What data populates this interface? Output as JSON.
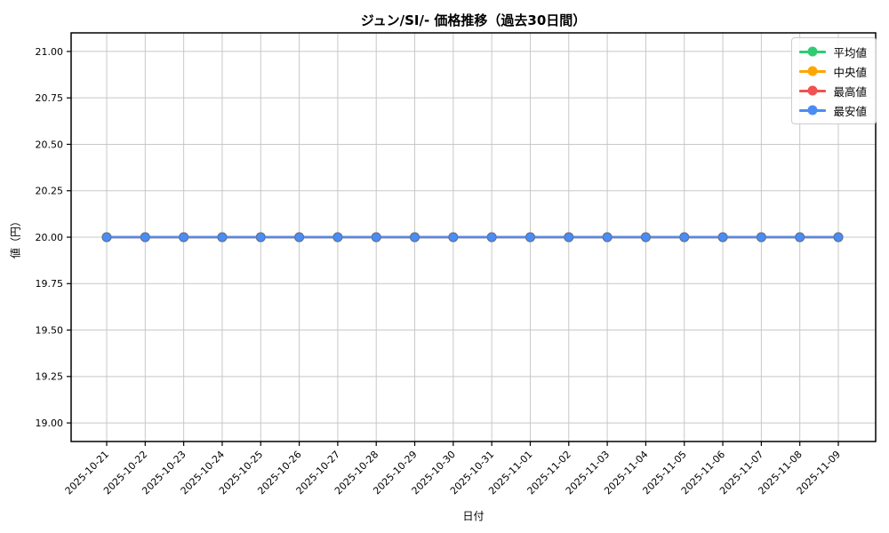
{
  "chart_data": {
    "type": "line",
    "title": "ジュン/SI/- 価格推移（過去30日間）",
    "xlabel": "日付",
    "ylabel": "値（円）",
    "categories": [
      "2025-10-21",
      "2025-10-22",
      "2025-10-23",
      "2025-10-24",
      "2025-10-25",
      "2025-10-26",
      "2025-10-27",
      "2025-10-28",
      "2025-10-29",
      "2025-10-30",
      "2025-10-31",
      "2025-11-01",
      "2025-11-02",
      "2025-11-03",
      "2025-11-04",
      "2025-11-05",
      "2025-11-06",
      "2025-11-07",
      "2025-11-08",
      "2025-11-09"
    ],
    "series": [
      {
        "name": "平均値",
        "color": "#2ecc71",
        "values": [
          20.0,
          20.0,
          20.0,
          20.0,
          20.0,
          20.0,
          20.0,
          20.0,
          20.0,
          20.0,
          20.0,
          20.0,
          20.0,
          20.0,
          20.0,
          20.0,
          20.0,
          20.0,
          20.0,
          20.0
        ]
      },
      {
        "name": "中央値",
        "color": "#ffa502",
        "values": [
          20.0,
          20.0,
          20.0,
          20.0,
          20.0,
          20.0,
          20.0,
          20.0,
          20.0,
          20.0,
          20.0,
          20.0,
          20.0,
          20.0,
          20.0,
          20.0,
          20.0,
          20.0,
          20.0,
          20.0
        ]
      },
      {
        "name": "最高値",
        "color": "#f05152",
        "values": [
          20.0,
          20.0,
          20.0,
          20.0,
          20.0,
          20.0,
          20.0,
          20.0,
          20.0,
          20.0,
          20.0,
          20.0,
          20.0,
          20.0,
          20.0,
          20.0,
          20.0,
          20.0,
          20.0,
          20.0
        ]
      },
      {
        "name": "最安値",
        "color": "#4a8cf5",
        "values": [
          20.0,
          20.0,
          20.0,
          20.0,
          20.0,
          20.0,
          20.0,
          20.0,
          20.0,
          20.0,
          20.0,
          20.0,
          20.0,
          20.0,
          20.0,
          20.0,
          20.0,
          20.0,
          20.0,
          20.0
        ]
      }
    ],
    "yticks": [
      19.0,
      19.25,
      19.5,
      19.75,
      20.0,
      20.25,
      20.5,
      20.75,
      21.0
    ],
    "ytick_labels": [
      "19.00",
      "19.25",
      "19.50",
      "19.75",
      "20.00",
      "20.25",
      "20.50",
      "20.75",
      "21.00"
    ],
    "ylim": [
      18.9,
      21.1
    ],
    "grid": true,
    "legend_position": "upper right",
    "xtick_rotation_deg": 45
  },
  "colors": {
    "grid": "#c8c8c8",
    "axis": "#000000",
    "background": "#ffffff",
    "tick_text": "#000000"
  }
}
